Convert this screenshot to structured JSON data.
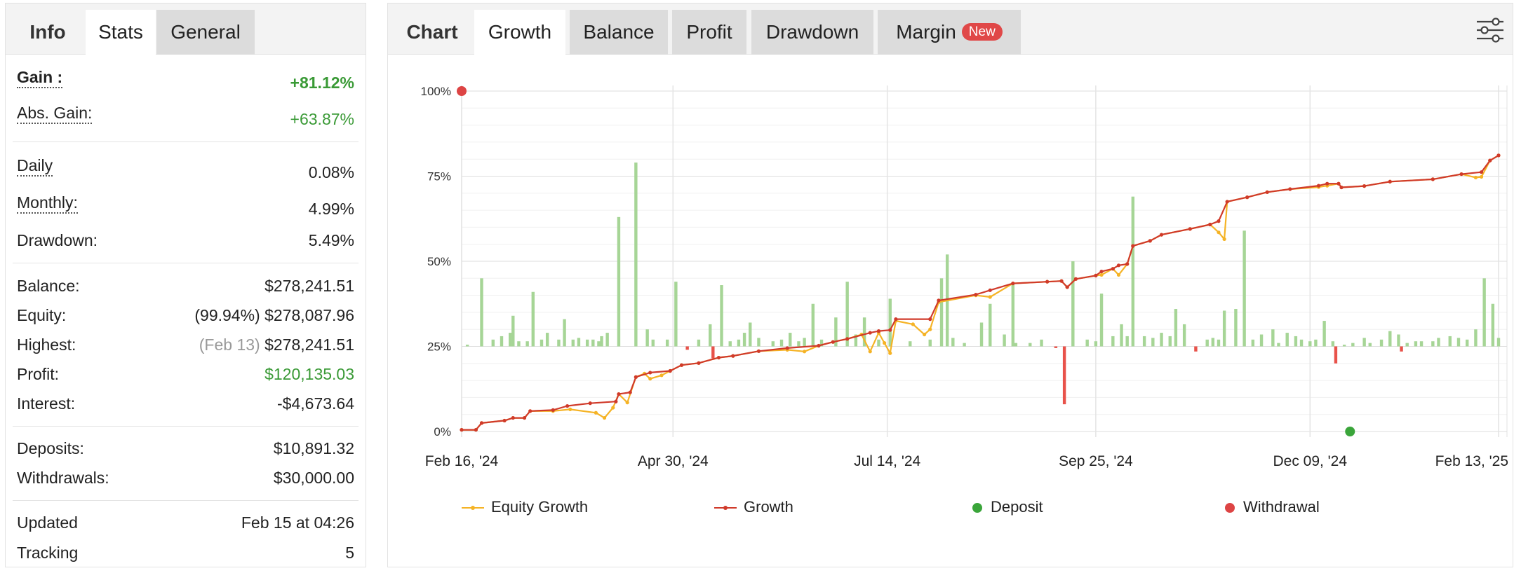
{
  "left_tabs": [
    {
      "label": "Info",
      "state": "title"
    },
    {
      "label": "Stats",
      "state": "active"
    },
    {
      "label": "General",
      "state": "grey"
    }
  ],
  "stats": {
    "gain": {
      "label": "Gain :",
      "value": "+81.12%"
    },
    "abs_gain": {
      "label": "Abs. Gain:",
      "value": "+63.87%"
    },
    "daily": {
      "label": "Daily",
      "value": "0.08%"
    },
    "monthly": {
      "label": "Monthly:",
      "value": "4.99%"
    },
    "drawdown": {
      "label": "Drawdown:",
      "value": "5.49%"
    },
    "balance": {
      "label": "Balance:",
      "value": "$278,241.51"
    },
    "equity": {
      "label": "Equity:",
      "sub": "(99.94%)",
      "value": "$278,087.96"
    },
    "highest": {
      "label": "Highest:",
      "sub": "(Feb 13)",
      "value": "$278,241.51"
    },
    "profit": {
      "label": "Profit:",
      "value": "$120,135.03"
    },
    "interest": {
      "label": "Interest:",
      "value": "-$4,673.64"
    },
    "deposits": {
      "label": "Deposits:",
      "value": "$10,891.32"
    },
    "withdrawals": {
      "label": "Withdrawals:",
      "value": "$30,000.00"
    },
    "updated": {
      "label": "Updated",
      "value": "Feb 15 at 04:26"
    },
    "tracking": {
      "label": "Tracking",
      "value": "5"
    }
  },
  "chart_tabs": [
    {
      "label": "Chart",
      "state": "title"
    },
    {
      "label": "Growth",
      "state": "active"
    },
    {
      "label": "Balance",
      "state": "grey"
    },
    {
      "label": "Profit",
      "state": "grey"
    },
    {
      "label": "Drawdown",
      "state": "grey"
    },
    {
      "label": "Margin",
      "state": "grey",
      "badge": "New"
    }
  ],
  "icons": {
    "settings": "sliders-icon"
  },
  "colors": {
    "growth": "#d03a2a",
    "equity_growth": "#f5b325",
    "positive_bar": "#a6d596",
    "negative_bar": "#e8524a",
    "deposit": "#3aa53a",
    "withdrawal": "#dd4444",
    "gain_text": "#3a9a36"
  },
  "chart_data": {
    "type": "line",
    "y_ticks": [
      "100%",
      "75%",
      "50%",
      "25%",
      "0%"
    ],
    "x_tick_labels": [
      "Feb 16, '24",
      "Apr 30, '24",
      "Jul 14, '24",
      "Sep 25, '24",
      "Dec 09, '24",
      "Feb 13, '25"
    ],
    "ylim": [
      0,
      100
    ],
    "x_range_days": [
      0,
      363
    ],
    "x_tick_days": [
      0,
      74,
      149,
      222,
      297,
      363
    ],
    "grid": true,
    "legend": {
      "position": "bottom",
      "items": [
        "Equity Growth",
        "Growth",
        "Deposit",
        "Withdrawal"
      ]
    },
    "series": [
      {
        "name": "Growth",
        "points": [
          [
            0,
            0.5
          ],
          [
            5,
            0.5
          ],
          [
            7,
            2.5
          ],
          [
            15,
            3.2
          ],
          [
            18,
            4
          ],
          [
            22,
            4
          ],
          [
            24,
            6
          ],
          [
            32,
            6.3
          ],
          [
            37,
            7.5
          ],
          [
            45,
            8.3
          ],
          [
            54,
            8.8
          ],
          [
            55,
            11
          ],
          [
            59,
            11.5
          ],
          [
            61,
            16
          ],
          [
            66,
            17.3
          ],
          [
            73,
            17.8
          ],
          [
            77,
            19.5
          ],
          [
            83,
            20.1
          ],
          [
            90,
            21.7
          ],
          [
            95,
            22.2
          ],
          [
            104,
            23.6
          ],
          [
            114,
            24.5
          ],
          [
            125,
            25.2
          ],
          [
            130,
            26.3
          ],
          [
            135,
            27.2
          ],
          [
            143,
            29
          ],
          [
            146,
            29.5
          ],
          [
            150,
            29.8
          ],
          [
            152,
            33
          ],
          [
            164,
            33
          ],
          [
            167,
            38.5
          ],
          [
            180,
            40.2
          ],
          [
            185,
            41.5
          ],
          [
            193,
            43.5
          ],
          [
            205,
            44
          ],
          [
            210,
            44.2
          ],
          [
            212,
            42.4
          ],
          [
            215,
            44.8
          ],
          [
            222,
            45.8
          ],
          [
            224,
            47
          ],
          [
            228,
            47.8
          ],
          [
            230,
            48.8
          ],
          [
            233,
            49.2
          ],
          [
            235,
            54.5
          ],
          [
            241,
            56
          ],
          [
            245,
            57.8
          ],
          [
            255,
            59.5
          ],
          [
            262,
            60.8
          ],
          [
            265,
            61.8
          ],
          [
            268,
            67.5
          ],
          [
            275,
            68.8
          ],
          [
            282,
            70.3
          ],
          [
            290,
            71.2
          ],
          [
            300,
            72.2
          ],
          [
            303,
            72.8
          ],
          [
            307,
            72.8
          ],
          [
            308,
            71.7
          ],
          [
            316,
            72.1
          ],
          [
            325,
            73.4
          ],
          [
            340,
            74.1
          ],
          [
            350,
            75.6
          ],
          [
            357,
            76.2
          ],
          [
            360,
            79.6
          ],
          [
            363,
            81.1
          ]
        ]
      },
      {
        "name": "Equity Growth",
        "points": [
          [
            0,
            0.5
          ],
          [
            5,
            0.5
          ],
          [
            7,
            2.5
          ],
          [
            15,
            3.2
          ],
          [
            18,
            4
          ],
          [
            22,
            4
          ],
          [
            24,
            6
          ],
          [
            32,
            6
          ],
          [
            38,
            6.5
          ],
          [
            47,
            5.5
          ],
          [
            50,
            4
          ],
          [
            53,
            7
          ],
          [
            55,
            11
          ],
          [
            58,
            8.5
          ],
          [
            61,
            16
          ],
          [
            64,
            17
          ],
          [
            66,
            15.5
          ],
          [
            70,
            16.5
          ],
          [
            73,
            17.8
          ],
          [
            77,
            19.5
          ],
          [
            83,
            20.1
          ],
          [
            90,
            21.7
          ],
          [
            95,
            22.2
          ],
          [
            104,
            23.6
          ],
          [
            114,
            24
          ],
          [
            120,
            23.5
          ],
          [
            125,
            25.2
          ],
          [
            130,
            26.3
          ],
          [
            135,
            27.2
          ],
          [
            140,
            28.5
          ],
          [
            143,
            23.5
          ],
          [
            146,
            29
          ],
          [
            148,
            26
          ],
          [
            150,
            23
          ],
          [
            152,
            32.5
          ],
          [
            158,
            31.5
          ],
          [
            162,
            28.5
          ],
          [
            164,
            30
          ],
          [
            167,
            38
          ],
          [
            180,
            40
          ],
          [
            185,
            39.5
          ],
          [
            193,
            43.5
          ],
          [
            205,
            44
          ],
          [
            210,
            44.2
          ],
          [
            212,
            42.4
          ],
          [
            215,
            44.8
          ],
          [
            222,
            45.8
          ],
          [
            224,
            46
          ],
          [
            228,
            47.8
          ],
          [
            230,
            46
          ],
          [
            233,
            49.2
          ],
          [
            235,
            54.5
          ],
          [
            241,
            56
          ],
          [
            245,
            57.8
          ],
          [
            255,
            59.5
          ],
          [
            262,
            60.8
          ],
          [
            265,
            58.5
          ],
          [
            267,
            56.5
          ],
          [
            268,
            67.5
          ],
          [
            275,
            68.8
          ],
          [
            282,
            70.3
          ],
          [
            290,
            71.2
          ],
          [
            300,
            71.8
          ],
          [
            303,
            72.2
          ],
          [
            307,
            72.8
          ],
          [
            308,
            71.7
          ],
          [
            316,
            72.1
          ],
          [
            325,
            73.4
          ],
          [
            340,
            74.1
          ],
          [
            350,
            75.6
          ],
          [
            355,
            74.6
          ],
          [
            357,
            74.8
          ],
          [
            360,
            79.6
          ],
          [
            363,
            81.1
          ]
        ]
      },
      {
        "name": "Bars",
        "values": [
          [
            2,
            0.5
          ],
          [
            7,
            20
          ],
          [
            11,
            2
          ],
          [
            14,
            3
          ],
          [
            17,
            4
          ],
          [
            18,
            9
          ],
          [
            20,
            1.5
          ],
          [
            23,
            1.5
          ],
          [
            25,
            16
          ],
          [
            28,
            2
          ],
          [
            30,
            4
          ],
          [
            34,
            2
          ],
          [
            36,
            8
          ],
          [
            39,
            2
          ],
          [
            41,
            2.5
          ],
          [
            44,
            2
          ],
          [
            46,
            2
          ],
          [
            48,
            1.5
          ],
          [
            49,
            3
          ],
          [
            51,
            4
          ],
          [
            55,
            38
          ],
          [
            61,
            54
          ],
          [
            65,
            5
          ],
          [
            67,
            2
          ],
          [
            72,
            2
          ],
          [
            75,
            19
          ],
          [
            79,
            -1
          ],
          [
            83,
            2
          ],
          [
            87,
            6.5
          ],
          [
            88,
            -3.5
          ],
          [
            91,
            18
          ],
          [
            94,
            1.5
          ],
          [
            97,
            2
          ],
          [
            99,
            4
          ],
          [
            101,
            7
          ],
          [
            104,
            2.5
          ],
          [
            109,
            1.5
          ],
          [
            112,
            2
          ],
          [
            115,
            4
          ],
          [
            118,
            1.5
          ],
          [
            120,
            2.5
          ],
          [
            123,
            12.5
          ],
          [
            126,
            2
          ],
          [
            131,
            8.5
          ],
          [
            135,
            19
          ],
          [
            138,
            3.5
          ],
          [
            141,
            8.5
          ],
          [
            146,
            2
          ],
          [
            150,
            14
          ],
          [
            157,
            1.5
          ],
          [
            164,
            2
          ],
          [
            168,
            20
          ],
          [
            170,
            27
          ],
          [
            172,
            2.5
          ],
          [
            176,
            1
          ],
          [
            182,
            7
          ],
          [
            185,
            12.5
          ],
          [
            190,
            3.5
          ],
          [
            193,
            18.5
          ],
          [
            194,
            1
          ],
          [
            199,
            1
          ],
          [
            203,
            2
          ],
          [
            208,
            -0.5
          ],
          [
            211,
            -17
          ],
          [
            214,
            25
          ],
          [
            219,
            2
          ],
          [
            222,
            1.5
          ],
          [
            224,
            15.5
          ],
          [
            228,
            3
          ],
          [
            231,
            6.5
          ],
          [
            233,
            3
          ],
          [
            235,
            44
          ],
          [
            239,
            3
          ],
          [
            242,
            2.5
          ],
          [
            245,
            4
          ],
          [
            248,
            3
          ],
          [
            250,
            11
          ],
          [
            253,
            6.5
          ],
          [
            257,
            -1.5
          ],
          [
            261,
            2
          ],
          [
            263,
            2.5
          ],
          [
            265,
            2
          ],
          [
            267,
            10.5
          ],
          [
            271,
            11
          ],
          [
            274,
            34
          ],
          [
            277,
            2
          ],
          [
            280,
            3.5
          ],
          [
            284,
            5
          ],
          [
            286,
            1
          ],
          [
            289,
            4
          ],
          [
            292,
            3
          ],
          [
            294,
            2
          ],
          [
            297,
            1.5
          ],
          [
            299,
            2
          ],
          [
            302,
            7.5
          ],
          [
            305,
            1.5
          ],
          [
            306,
            -5
          ],
          [
            309,
            0.5
          ],
          [
            312,
            1
          ],
          [
            316,
            2.5
          ],
          [
            318,
            1
          ],
          [
            322,
            2
          ],
          [
            325,
            4.5
          ],
          [
            328,
            3.5
          ],
          [
            329,
            -1.5
          ],
          [
            331,
            1
          ],
          [
            334,
            1.5
          ],
          [
            336,
            1.5
          ],
          [
            340,
            1.5
          ],
          [
            342,
            2.5
          ],
          [
            346,
            3
          ],
          [
            349,
            2.5
          ],
          [
            352,
            2
          ],
          [
            355,
            5
          ],
          [
            358,
            20
          ],
          [
            361,
            12.5
          ],
          [
            363,
            2.5
          ]
        ]
      },
      {
        "name": "Deposit",
        "points": [
          [
            311,
            0
          ]
        ]
      },
      {
        "name": "Withdrawal",
        "points": [
          [
            0,
            100
          ]
        ]
      }
    ]
  }
}
